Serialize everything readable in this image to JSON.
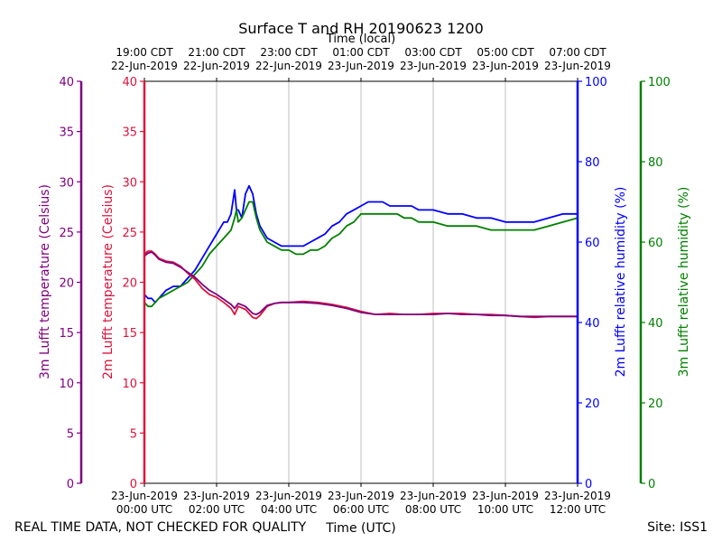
{
  "chart_data": {
    "type": "line",
    "title": "Surface T and RH 20190623 1200",
    "top_axis_title": "Time (local)",
    "bottom_axis_title": "Time (UTC)",
    "footer_left": "REAL TIME DATA, NOT CHECKED FOR QUALITY",
    "footer_right": "Site: ISS1",
    "x_hours_range": [
      0,
      12
    ],
    "top_ticks": [
      {
        "hour": 0,
        "line1": "19:00 CDT",
        "line2": "22-Jun-2019"
      },
      {
        "hour": 2,
        "line1": "21:00 CDT",
        "line2": "22-Jun-2019"
      },
      {
        "hour": 4,
        "line1": "23:00 CDT",
        "line2": "22-Jun-2019"
      },
      {
        "hour": 6,
        "line1": "01:00 CDT",
        "line2": "23-Jun-2019"
      },
      {
        "hour": 8,
        "line1": "03:00 CDT",
        "line2": "23-Jun-2019"
      },
      {
        "hour": 10,
        "line1": "05:00 CDT",
        "line2": "23-Jun-2019"
      },
      {
        "hour": 12,
        "line1": "07:00 CDT",
        "line2": "23-Jun-2019"
      }
    ],
    "bottom_ticks": [
      {
        "hour": 0,
        "line1": "23-Jun-2019",
        "line2": "00:00 UTC"
      },
      {
        "hour": 2,
        "line1": "23-Jun-2019",
        "line2": "02:00 UTC"
      },
      {
        "hour": 4,
        "line1": "23-Jun-2019",
        "line2": "04:00 UTC"
      },
      {
        "hour": 6,
        "line1": "23-Jun-2019",
        "line2": "06:00 UTC"
      },
      {
        "hour": 8,
        "line1": "23-Jun-2019",
        "line2": "08:00 UTC"
      },
      {
        "hour": 10,
        "line1": "23-Jun-2019",
        "line2": "10:00 UTC"
      },
      {
        "hour": 12,
        "line1": "23-Jun-2019",
        "line2": "12:00 UTC"
      }
    ],
    "axes": {
      "temp_3m": {
        "label": "3m Lufft temperature (Celsius)",
        "color": "#800080",
        "range": [
          0,
          40
        ],
        "ticks": [
          "0",
          "5",
          "10",
          "15",
          "20",
          "25",
          "30",
          "35",
          "40"
        ]
      },
      "temp_2m": {
        "label": "2m Lufft temperature (Celsius)",
        "color": "#dc143c",
        "range": [
          0,
          40
        ],
        "ticks": [
          "0",
          "5",
          "10",
          "15",
          "20",
          "25",
          "30",
          "35",
          "40"
        ]
      },
      "rh_2m": {
        "label": "2m Lufft relative humidity (%)",
        "color": "#0000ff",
        "range": [
          0,
          100
        ],
        "ticks": [
          "0",
          "20",
          "40",
          "60",
          "80",
          "100"
        ]
      },
      "rh_3m": {
        "label": "3m Lufft relative humidity (%)",
        "color": "#008000",
        "range": [
          0,
          100
        ],
        "ticks": [
          "0",
          "20",
          "40",
          "60",
          "80",
          "100"
        ]
      }
    },
    "series": [
      {
        "name": "2m Lufft relative humidity",
        "axis": "rh_2m",
        "color": "#0000ff",
        "x": [
          0,
          0.1,
          0.2,
          0.3,
          0.4,
          0.6,
          0.8,
          1.0,
          1.2,
          1.4,
          1.6,
          1.8,
          2.0,
          2.2,
          2.3,
          2.4,
          2.5,
          2.55,
          2.6,
          2.7,
          2.8,
          2.9,
          3.0,
          3.1,
          3.2,
          3.4,
          3.6,
          3.8,
          4.0,
          4.2,
          4.4,
          4.6,
          4.8,
          5.0,
          5.2,
          5.4,
          5.6,
          5.8,
          6.0,
          6.2,
          6.4,
          6.6,
          6.8,
          7.0,
          7.2,
          7.4,
          7.6,
          7.8,
          8.0,
          8.4,
          8.8,
          9.2,
          9.6,
          10.0,
          10.4,
          10.8,
          11.2,
          11.6,
          12.0
        ],
        "values": [
          47,
          46,
          46,
          45,
          46,
          48,
          49,
          49,
          51,
          53,
          56,
          59,
          62,
          65,
          65,
          67,
          73,
          68,
          68,
          66,
          72,
          74,
          72,
          67,
          64,
          61,
          60,
          59,
          59,
          59,
          59,
          60,
          61,
          62,
          64,
          65,
          67,
          68,
          69,
          70,
          70,
          70,
          69,
          69,
          69,
          69,
          68,
          68,
          68,
          67,
          67,
          66,
          66,
          65,
          65,
          65,
          66,
          67,
          67
        ]
      },
      {
        "name": "3m Lufft relative humidity",
        "axis": "rh_3m",
        "color": "#008000",
        "x": [
          0,
          0.1,
          0.2,
          0.3,
          0.4,
          0.6,
          0.8,
          1.0,
          1.2,
          1.4,
          1.6,
          1.8,
          2.0,
          2.2,
          2.3,
          2.4,
          2.5,
          2.55,
          2.6,
          2.7,
          2.8,
          2.9,
          3.0,
          3.1,
          3.2,
          3.4,
          3.6,
          3.8,
          4.0,
          4.2,
          4.4,
          4.6,
          4.8,
          5.0,
          5.2,
          5.4,
          5.6,
          5.8,
          6.0,
          6.2,
          6.4,
          6.6,
          6.8,
          7.0,
          7.2,
          7.4,
          7.6,
          7.8,
          8.0,
          8.4,
          8.8,
          9.2,
          9.6,
          10.0,
          10.4,
          10.8,
          11.2,
          11.6,
          12.0
        ],
        "values": [
          45,
          44,
          44,
          45,
          46,
          47,
          48,
          49,
          50,
          52,
          54,
          57,
          59,
          61,
          62,
          63,
          66,
          68,
          65,
          66,
          68,
          70,
          70,
          66,
          63,
          60,
          59,
          58,
          58,
          57,
          57,
          58,
          58,
          59,
          61,
          62,
          64,
          65,
          67,
          67,
          67,
          67,
          67,
          67,
          66,
          66,
          65,
          65,
          65,
          64,
          64,
          64,
          63,
          63,
          63,
          63,
          64,
          65,
          66
        ]
      },
      {
        "name": "2m Lufft temperature",
        "axis": "temp_2m",
        "color": "#dc143c",
        "x": [
          0,
          0.1,
          0.2,
          0.3,
          0.4,
          0.6,
          0.8,
          1.0,
          1.2,
          1.4,
          1.6,
          1.8,
          2.0,
          2.2,
          2.4,
          2.5,
          2.6,
          2.8,
          3.0,
          3.1,
          3.2,
          3.4,
          3.6,
          3.8,
          4.0,
          4.4,
          4.8,
          5.2,
          5.6,
          6.0,
          6.4,
          6.8,
          7.2,
          7.6,
          8.0,
          8.4,
          8.8,
          9.2,
          9.6,
          10.0,
          10.4,
          10.8,
          11.2,
          11.6,
          12.0
        ],
        "values": [
          22.8,
          23.1,
          23.1,
          22.8,
          22.4,
          22.1,
          22.0,
          21.6,
          20.9,
          20.3,
          19.4,
          18.8,
          18.5,
          18.0,
          17.4,
          16.8,
          17.6,
          17.3,
          16.5,
          16.4,
          16.7,
          17.6,
          17.9,
          18.0,
          18.0,
          18.1,
          18.0,
          17.8,
          17.5,
          17.1,
          16.8,
          16.9,
          16.8,
          16.8,
          16.9,
          16.9,
          16.9,
          16.8,
          16.8,
          16.7,
          16.6,
          16.5,
          16.6,
          16.6,
          16.6
        ]
      },
      {
        "name": "3m Lufft temperature",
        "axis": "temp_3m",
        "color": "#800080",
        "x": [
          0,
          0.1,
          0.2,
          0.3,
          0.4,
          0.6,
          0.8,
          1.0,
          1.2,
          1.4,
          1.6,
          1.8,
          2.0,
          2.2,
          2.4,
          2.5,
          2.6,
          2.8,
          3.0,
          3.1,
          3.2,
          3.4,
          3.6,
          3.8,
          4.0,
          4.4,
          4.8,
          5.2,
          5.6,
          6.0,
          6.4,
          6.8,
          7.2,
          7.6,
          8.0,
          8.4,
          8.8,
          9.2,
          9.6,
          10.0,
          10.4,
          10.8,
          11.2,
          11.6,
          12.0
        ],
        "values": [
          22.6,
          22.9,
          23.0,
          22.7,
          22.3,
          22.0,
          21.9,
          21.5,
          21.0,
          20.5,
          19.8,
          19.2,
          18.8,
          18.3,
          17.8,
          17.4,
          17.9,
          17.6,
          16.9,
          16.8,
          17.0,
          17.7,
          17.9,
          18.0,
          18.0,
          18.0,
          17.9,
          17.7,
          17.4,
          17.0,
          16.8,
          16.8,
          16.8,
          16.8,
          16.8,
          16.9,
          16.8,
          16.8,
          16.7,
          16.7,
          16.6,
          16.6,
          16.6,
          16.6,
          16.6
        ]
      }
    ]
  }
}
